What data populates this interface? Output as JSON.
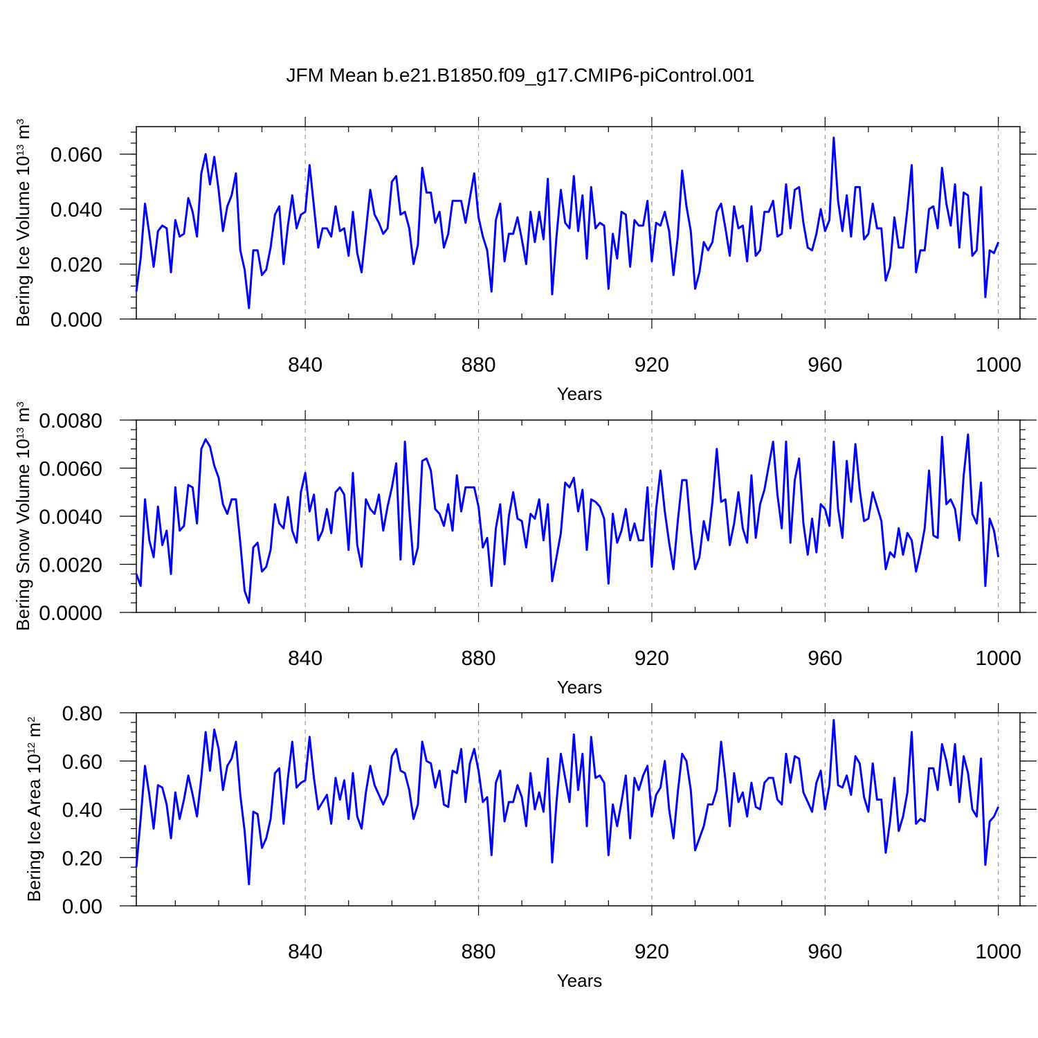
{
  "figure": {
    "title": "JFM Mean b.e21.B1850.f09_g17.CMIP6-piControl.001"
  },
  "chart_data": [
    {
      "type": "line",
      "name": "ice-volume",
      "ylabel": "Bering Ice Volume",
      "ylabel_scale": "10",
      "ylabel_exp": "13",
      "ylabel_unit": "m",
      "ylabel_unit_exp": "3",
      "xlabel": "Years",
      "xlim": [
        801,
        1005
      ],
      "ylim": [
        0.0,
        0.07
      ],
      "yticks": [
        0.0,
        0.02,
        0.04,
        0.06
      ],
      "ytick_labels": [
        "0.000",
        "0.020",
        "0.040",
        "0.060"
      ],
      "xticks": [
        840,
        880,
        920,
        960,
        1000
      ],
      "xtick_labels": [
        "840",
        "880",
        "920",
        "960",
        "1000"
      ],
      "grid": "dashed vertical at x ticks",
      "series": [
        {
          "name": "Bering Ice Volume",
          "color": "#0000ff",
          "x_start": 801,
          "values": [
            0.01,
            0.022,
            0.042,
            0.031,
            0.019,
            0.032,
            0.034,
            0.033,
            0.017,
            0.036,
            0.03,
            0.031,
            0.044,
            0.039,
            0.03,
            0.053,
            0.06,
            0.049,
            0.059,
            0.047,
            0.032,
            0.041,
            0.045,
            0.053,
            0.025,
            0.018,
            0.004,
            0.025,
            0.025,
            0.016,
            0.018,
            0.026,
            0.038,
            0.041,
            0.02,
            0.034,
            0.045,
            0.033,
            0.038,
            0.039,
            0.056,
            0.041,
            0.026,
            0.033,
            0.033,
            0.03,
            0.041,
            0.032,
            0.033,
            0.023,
            0.039,
            0.024,
            0.017,
            0.032,
            0.047,
            0.038,
            0.035,
            0.031,
            0.033,
            0.05,
            0.052,
            0.038,
            0.039,
            0.033,
            0.02,
            0.027,
            0.055,
            0.046,
            0.046,
            0.035,
            0.039,
            0.026,
            0.031,
            0.043,
            0.043,
            0.043,
            0.035,
            0.044,
            0.053,
            0.037,
            0.03,
            0.025,
            0.01,
            0.036,
            0.042,
            0.021,
            0.031,
            0.031,
            0.037,
            0.029,
            0.02,
            0.039,
            0.028,
            0.039,
            0.029,
            0.051,
            0.009,
            0.03,
            0.047,
            0.035,
            0.033,
            0.052,
            0.032,
            0.045,
            0.022,
            0.048,
            0.033,
            0.035,
            0.034,
            0.011,
            0.031,
            0.022,
            0.039,
            0.038,
            0.019,
            0.036,
            0.034,
            0.034,
            0.043,
            0.021,
            0.035,
            0.034,
            0.039,
            0.032,
            0.016,
            0.03,
            0.054,
            0.041,
            0.032,
            0.011,
            0.017,
            0.028,
            0.025,
            0.028,
            0.039,
            0.042,
            0.033,
            0.023,
            0.041,
            0.033,
            0.034,
            0.021,
            0.041,
            0.023,
            0.025,
            0.039,
            0.039,
            0.043,
            0.03,
            0.031,
            0.049,
            0.033,
            0.047,
            0.048,
            0.035,
            0.026,
            0.025,
            0.031,
            0.04,
            0.032,
            0.036,
            0.066,
            0.043,
            0.032,
            0.045,
            0.03,
            0.048,
            0.048,
            0.029,
            0.031,
            0.042,
            0.033,
            0.033,
            0.014,
            0.019,
            0.037,
            0.026,
            0.026,
            0.04,
            0.056,
            0.017,
            0.025,
            0.025,
            0.04,
            0.041,
            0.033,
            0.055,
            0.042,
            0.034,
            0.049,
            0.026,
            0.046,
            0.045,
            0.023,
            0.025,
            0.048,
            0.008,
            0.025,
            0.024,
            0.028
          ]
        }
      ]
    },
    {
      "type": "line",
      "name": "snow-volume",
      "ylabel": "Bering Snow Volume",
      "ylabel_scale": "10",
      "ylabel_exp": "13",
      "ylabel_unit": "m",
      "ylabel_unit_exp": "3",
      "xlabel": "Years",
      "xlim": [
        801,
        1005
      ],
      "ylim": [
        0.0,
        0.008
      ],
      "yticks": [
        0.0,
        0.002,
        0.004,
        0.006,
        0.008
      ],
      "ytick_labels": [
        "0.0000",
        "0.0020",
        "0.0040",
        "0.0060",
        "0.0080"
      ],
      "xticks": [
        840,
        880,
        920,
        960,
        1000
      ],
      "xtick_labels": [
        "840",
        "880",
        "920",
        "960",
        "1000"
      ],
      "grid": "dashed vertical at x ticks",
      "series": [
        {
          "name": "Bering Snow Volume",
          "color": "#0000ff",
          "x_start": 801,
          "values": [
            0.0016,
            0.0011,
            0.0047,
            0.003,
            0.0023,
            0.0044,
            0.0028,
            0.0034,
            0.0016,
            0.0052,
            0.0034,
            0.0036,
            0.0053,
            0.0052,
            0.0037,
            0.0068,
            0.0072,
            0.0069,
            0.0061,
            0.0056,
            0.0045,
            0.0041,
            0.0047,
            0.0047,
            0.0029,
            0.0009,
            0.0004,
            0.0027,
            0.0029,
            0.0017,
            0.0019,
            0.0026,
            0.0045,
            0.0037,
            0.0035,
            0.0048,
            0.0034,
            0.0029,
            0.005,
            0.0058,
            0.0042,
            0.0049,
            0.003,
            0.0034,
            0.0043,
            0.0033,
            0.005,
            0.0052,
            0.0049,
            0.0026,
            0.0058,
            0.0028,
            0.0019,
            0.0047,
            0.0043,
            0.0041,
            0.0049,
            0.0034,
            0.0044,
            0.0052,
            0.0062,
            0.0022,
            0.0071,
            0.0043,
            0.002,
            0.0027,
            0.0063,
            0.0064,
            0.0059,
            0.0043,
            0.0041,
            0.0036,
            0.0045,
            0.0034,
            0.0057,
            0.0042,
            0.0052,
            0.0052,
            0.0052,
            0.0044,
            0.0027,
            0.0031,
            0.0011,
            0.0035,
            0.0045,
            0.002,
            0.004,
            0.005,
            0.0039,
            0.0038,
            0.0027,
            0.0041,
            0.0039,
            0.0047,
            0.003,
            0.0045,
            0.0013,
            0.0023,
            0.0033,
            0.0054,
            0.0052,
            0.0056,
            0.0042,
            0.0051,
            0.0026,
            0.0047,
            0.0046,
            0.0044,
            0.0039,
            0.0012,
            0.0041,
            0.0029,
            0.0034,
            0.0043,
            0.003,
            0.0037,
            0.003,
            0.003,
            0.0052,
            0.0019,
            0.0043,
            0.0059,
            0.0042,
            0.0029,
            0.0018,
            0.0038,
            0.0055,
            0.0055,
            0.0034,
            0.0018,
            0.0023,
            0.0038,
            0.003,
            0.0046,
            0.0068,
            0.0046,
            0.0047,
            0.0028,
            0.0037,
            0.005,
            0.0035,
            0.0029,
            0.0057,
            0.0031,
            0.0045,
            0.0051,
            0.0061,
            0.0071,
            0.0049,
            0.0035,
            0.0071,
            0.0029,
            0.0055,
            0.0064,
            0.0037,
            0.0024,
            0.0039,
            0.0025,
            0.0045,
            0.0043,
            0.0036,
            0.0071,
            0.0043,
            0.0031,
            0.0063,
            0.0046,
            0.007,
            0.0051,
            0.0038,
            0.0039,
            0.005,
            0.0044,
            0.0038,
            0.0018,
            0.0025,
            0.0023,
            0.0035,
            0.0024,
            0.0033,
            0.003,
            0.0017,
            0.0025,
            0.0035,
            0.0059,
            0.0032,
            0.0031,
            0.0073,
            0.0045,
            0.0047,
            0.0043,
            0.003,
            0.0057,
            0.0074,
            0.0041,
            0.0037,
            0.0054,
            0.0011,
            0.0039,
            0.0034,
            0.0023
          ]
        }
      ]
    },
    {
      "type": "line",
      "name": "ice-area",
      "ylabel": "Bering Ice Area",
      "ylabel_scale": "10",
      "ylabel_exp": "12",
      "ylabel_unit": "m",
      "ylabel_unit_exp": "2",
      "xlabel": "Years",
      "xlim": [
        801,
        1005
      ],
      "ylim": [
        0.0,
        0.8
      ],
      "yticks": [
        0.0,
        0.2,
        0.4,
        0.6,
        0.8
      ],
      "ytick_labels": [
        "0.00",
        "0.20",
        "0.40",
        "0.60",
        "0.80"
      ],
      "xticks": [
        840,
        880,
        920,
        960,
        1000
      ],
      "xtick_labels": [
        "840",
        "880",
        "920",
        "960",
        "1000"
      ],
      "grid": "dashed vertical at x ticks",
      "series": [
        {
          "name": "Bering Ice Area",
          "color": "#0000ff",
          "x_start": 801,
          "values": [
            0.16,
            0.36,
            0.58,
            0.46,
            0.32,
            0.5,
            0.49,
            0.42,
            0.28,
            0.47,
            0.36,
            0.44,
            0.54,
            0.46,
            0.37,
            0.53,
            0.72,
            0.56,
            0.73,
            0.65,
            0.48,
            0.58,
            0.61,
            0.68,
            0.46,
            0.31,
            0.09,
            0.39,
            0.38,
            0.24,
            0.28,
            0.36,
            0.55,
            0.57,
            0.34,
            0.53,
            0.68,
            0.49,
            0.51,
            0.52,
            0.7,
            0.53,
            0.4,
            0.43,
            0.46,
            0.34,
            0.53,
            0.44,
            0.52,
            0.36,
            0.55,
            0.37,
            0.32,
            0.47,
            0.58,
            0.5,
            0.46,
            0.42,
            0.46,
            0.62,
            0.65,
            0.56,
            0.55,
            0.48,
            0.36,
            0.42,
            0.68,
            0.6,
            0.59,
            0.49,
            0.56,
            0.42,
            0.41,
            0.56,
            0.55,
            0.65,
            0.43,
            0.59,
            0.65,
            0.56,
            0.43,
            0.45,
            0.21,
            0.51,
            0.56,
            0.35,
            0.43,
            0.43,
            0.5,
            0.45,
            0.33,
            0.55,
            0.4,
            0.47,
            0.39,
            0.61,
            0.18,
            0.43,
            0.63,
            0.53,
            0.43,
            0.71,
            0.48,
            0.63,
            0.33,
            0.7,
            0.53,
            0.54,
            0.51,
            0.21,
            0.42,
            0.33,
            0.43,
            0.54,
            0.28,
            0.53,
            0.48,
            0.54,
            0.58,
            0.37,
            0.46,
            0.49,
            0.6,
            0.4,
            0.28,
            0.47,
            0.63,
            0.6,
            0.48,
            0.23,
            0.28,
            0.33,
            0.42,
            0.42,
            0.48,
            0.68,
            0.52,
            0.33,
            0.55,
            0.43,
            0.47,
            0.37,
            0.51,
            0.41,
            0.4,
            0.51,
            0.53,
            0.53,
            0.44,
            0.42,
            0.63,
            0.51,
            0.62,
            0.61,
            0.47,
            0.43,
            0.39,
            0.51,
            0.56,
            0.4,
            0.5,
            0.77,
            0.5,
            0.49,
            0.54,
            0.46,
            0.62,
            0.59,
            0.45,
            0.39,
            0.59,
            0.44,
            0.44,
            0.22,
            0.35,
            0.53,
            0.31,
            0.37,
            0.47,
            0.72,
            0.34,
            0.36,
            0.35,
            0.57,
            0.57,
            0.48,
            0.67,
            0.6,
            0.5,
            0.67,
            0.43,
            0.62,
            0.55,
            0.4,
            0.37,
            0.61,
            0.17,
            0.35,
            0.37,
            0.41
          ]
        }
      ]
    }
  ]
}
